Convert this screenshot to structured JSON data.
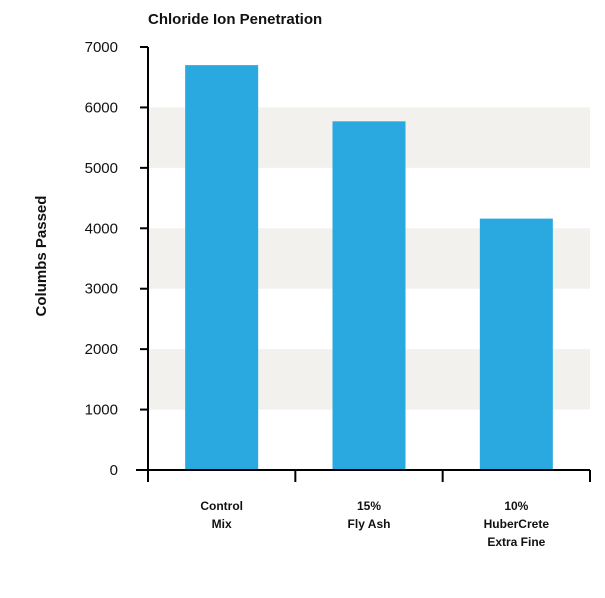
{
  "chart_data": {
    "type": "bar",
    "title": "Chloride Ion Penetration",
    "xlabel": "",
    "ylabel": "Columbs Passed",
    "categories": [
      [
        "Control",
        "Mix"
      ],
      [
        "15%",
        "Fly Ash"
      ],
      [
        "10%",
        "HuberCrete",
        "Extra Fine"
      ]
    ],
    "values": [
      6700,
      5770,
      4160
    ],
    "ylim": [
      0,
      7000
    ],
    "yticks": [
      0,
      1000,
      2000,
      3000,
      4000,
      5000,
      6000,
      7000
    ],
    "grid": "alternating horizontal bands",
    "legend": "none",
    "colors": {
      "bar": "#29A9E0",
      "band": "#F2F1EE",
      "axis": "#000000",
      "text": "#111111"
    }
  }
}
